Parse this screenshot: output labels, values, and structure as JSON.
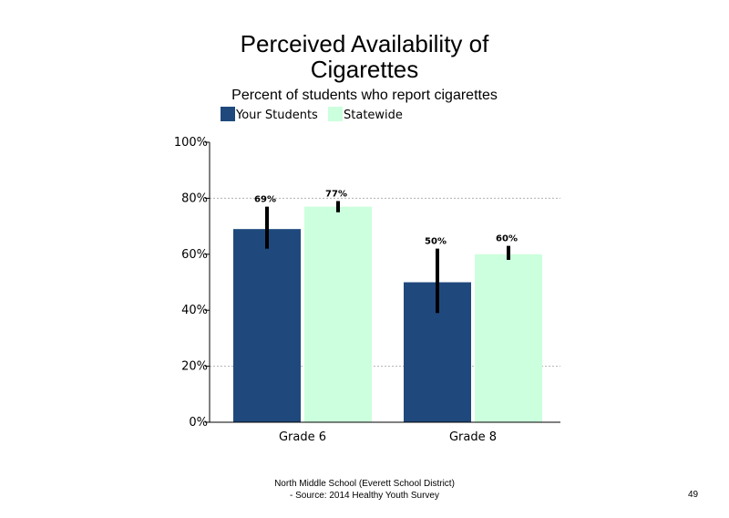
{
  "title_line1": "Perceived Availability of",
  "title_line2": "Cigarettes",
  "subtitle": "Percent of students who report cigarettes",
  "legend": [
    "Your Students",
    "Statewide"
  ],
  "footer_line1": "North Middle School (Everett School District)",
  "footer_line2": "- Source: 2014 Healthy  Youth Survey",
  "page_number": "49",
  "colors": {
    "your_students": "#1f497d",
    "statewide": "#ccffdd"
  },
  "chart_data": {
    "type": "bar",
    "title": "Perceived Availability of Cigarettes",
    "subtitle": "Percent of students who report cigarettes",
    "categories": [
      "Grade 6",
      "Grade 8"
    ],
    "series": [
      {
        "name": "Your Students",
        "values": [
          69,
          50
        ],
        "labels": [
          "69%",
          "50%"
        ],
        "error": [
          [
            62,
            77
          ],
          [
            39,
            62
          ]
        ]
      },
      {
        "name": "Statewide",
        "values": [
          77,
          60
        ],
        "labels": [
          "77%",
          "60%"
        ],
        "error": [
          [
            75,
            79
          ],
          [
            58,
            63
          ]
        ]
      }
    ],
    "ylim": [
      0,
      100
    ],
    "yticks": [
      0,
      20,
      40,
      60,
      80,
      100
    ],
    "ytick_labels": [
      "0%",
      "20%",
      "40%",
      "60%",
      "80%",
      "100%"
    ],
    "grid": "dotted horizontal at 20% and 80%",
    "legend_position": "top-left"
  }
}
